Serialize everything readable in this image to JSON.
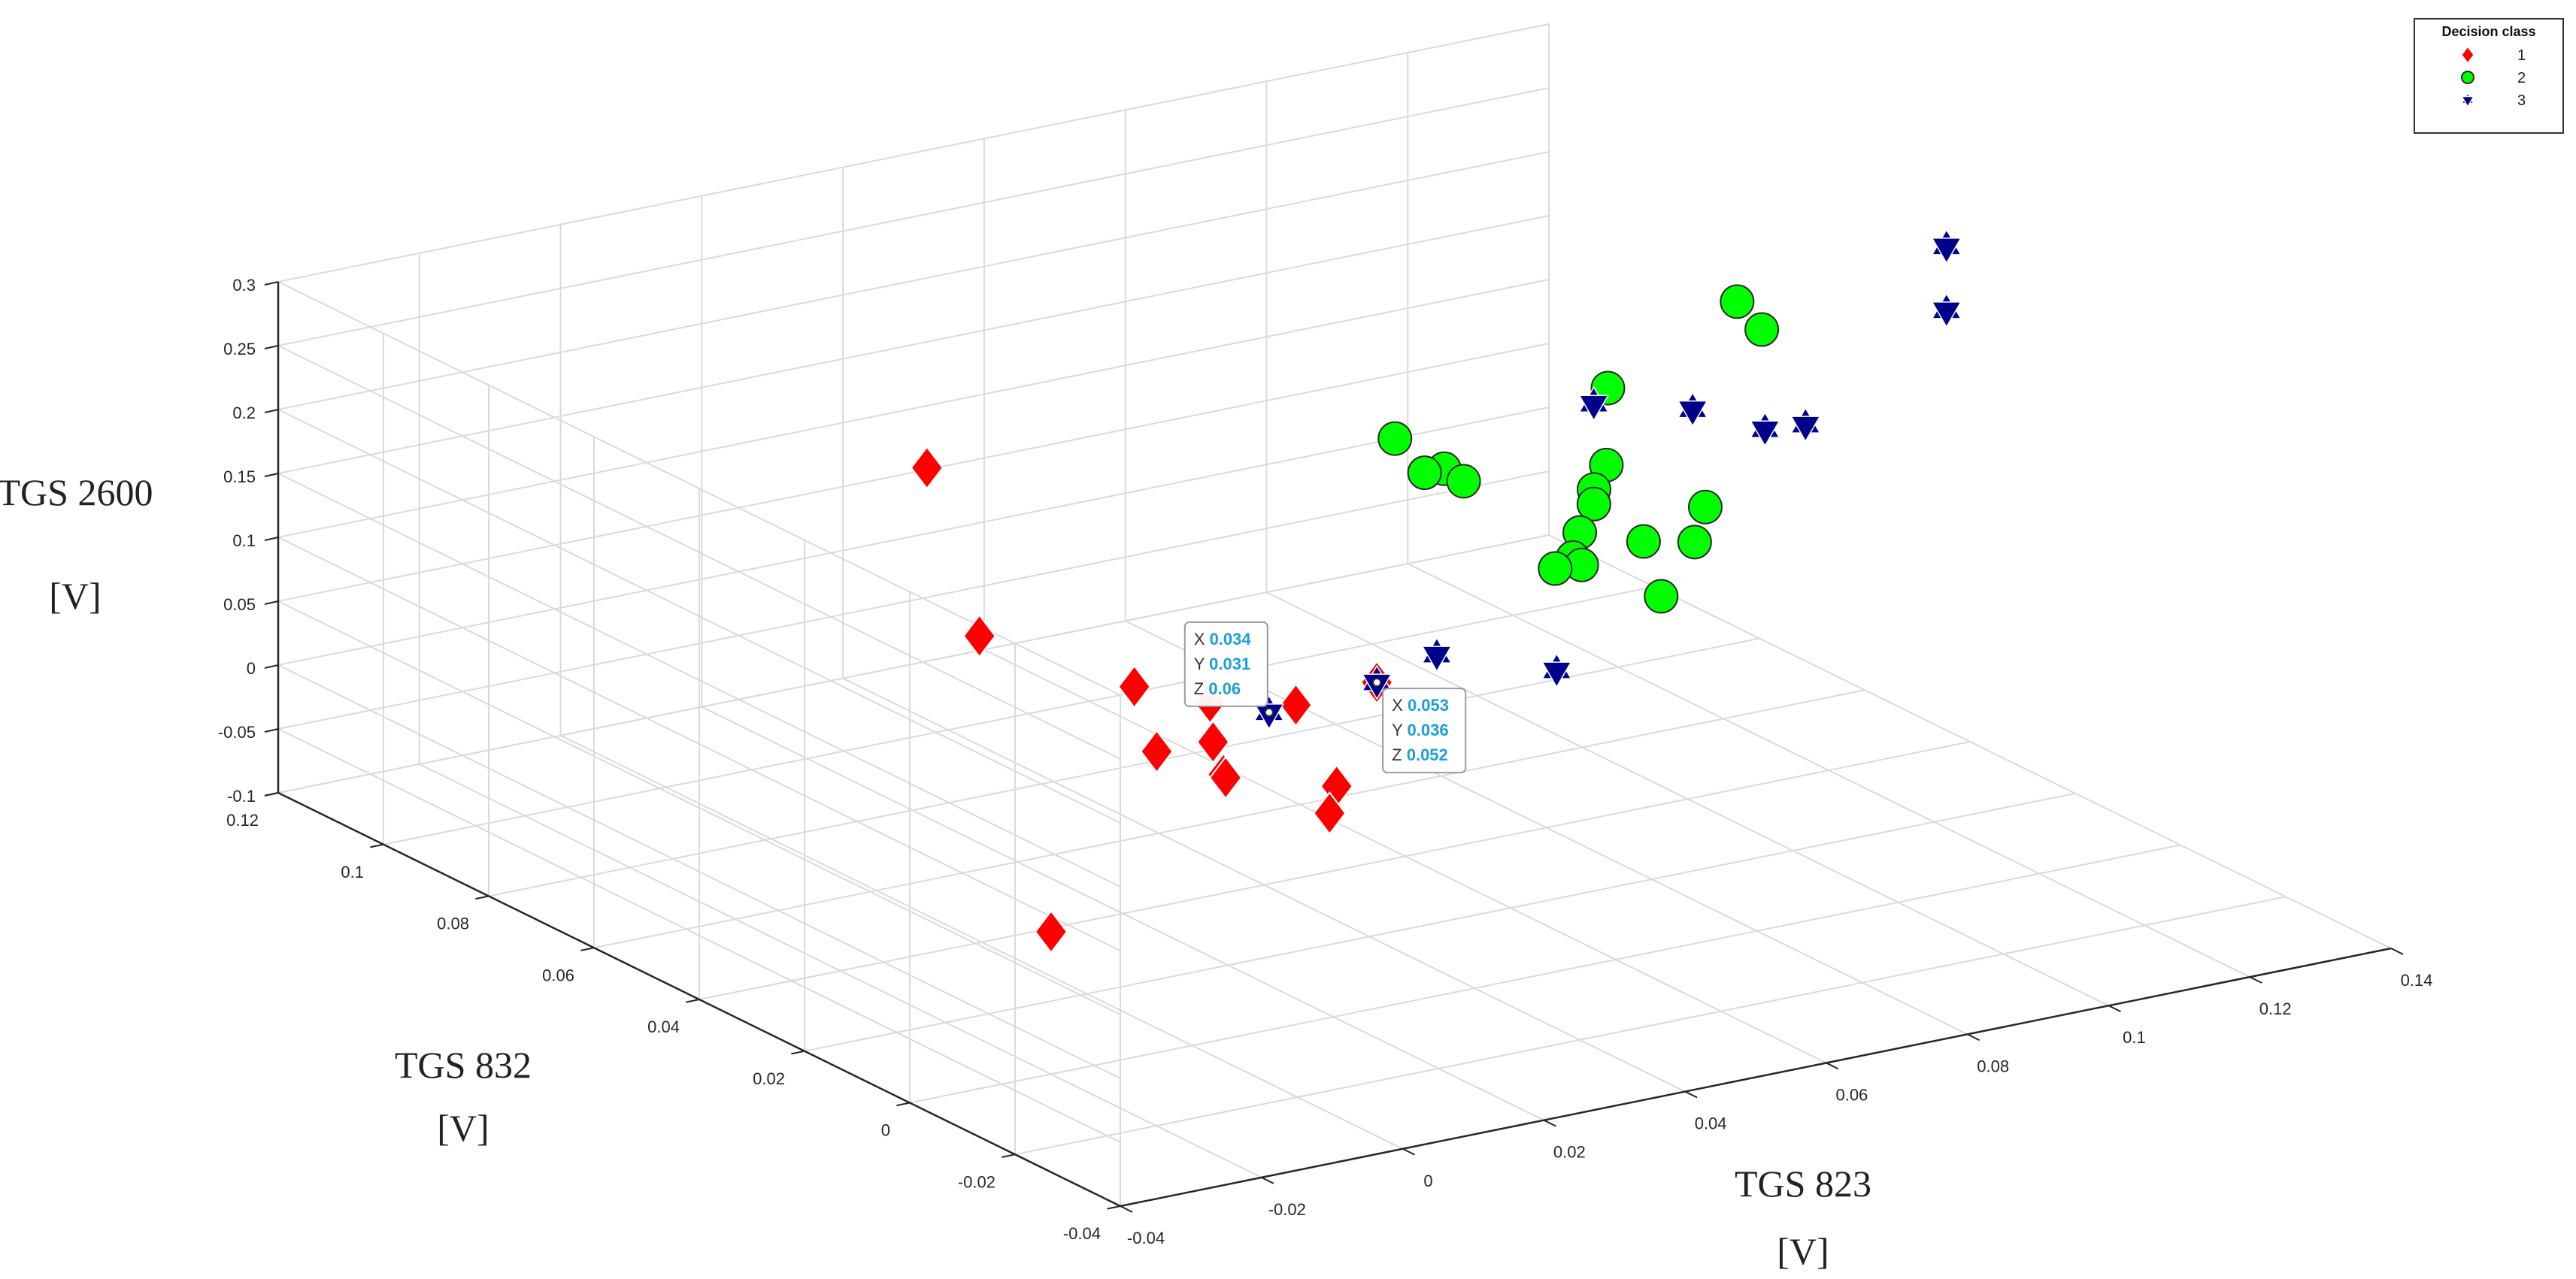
{
  "chart_data": {
    "type": "scatter3d",
    "axes": {
      "x": {
        "label": [
          "TGS 823",
          "[V]"
        ],
        "ticks": [
          "-0.04",
          "-0.02",
          "0",
          "0.02",
          "0.04",
          "0.06",
          "0.08",
          "0.1",
          "0.12",
          "0.14"
        ],
        "range": [
          -0.04,
          0.14
        ]
      },
      "y": {
        "label": [
          "TGS 832",
          "[V]"
        ],
        "ticks": [
          "-0.04",
          "-0.02",
          "0",
          "0.02",
          "0.04",
          "0.06",
          "0.08",
          "0.1",
          "0.12"
        ],
        "range": [
          -0.04,
          0.12
        ]
      },
      "z": {
        "label": [
          "TGS 2600",
          "[V]"
        ],
        "ticks": [
          "-0.1",
          "-0.05",
          "0",
          "0.05",
          "0.1",
          "0.15",
          "0.2",
          "0.25",
          "0.3"
        ],
        "range": [
          -0.1,
          0.3
        ]
      }
    },
    "grid": true,
    "legend": {
      "title": "Decision class",
      "placement": "top-right",
      "entries": [
        {
          "label": "1",
          "marker": "diamond",
          "color": "#ff0000"
        },
        {
          "label": "2",
          "marker": "circle",
          "color": "#00ff00"
        },
        {
          "label": "3",
          "marker": "hexagram",
          "color": "#00008b"
        }
      ]
    },
    "series": [
      {
        "name": "1",
        "points": [
          [
            0.034,
            0.096,
            0.12
          ],
          [
            0.031,
            0.082,
            0.02
          ],
          [
            0.044,
            0.07,
            -0.01
          ],
          [
            0.051,
            0.065,
            -0.02
          ],
          [
            0.057,
            0.049,
            -0.06
          ],
          [
            0.056,
            0.049,
            -0.08
          ],
          [
            0.053,
            0.036,
            0.052
          ],
          [
            0.046,
            0.042,
            0.03
          ],
          [
            0.045,
            0.054,
            -0.05
          ],
          [
            0.038,
            0.047,
            0.0
          ],
          [
            0.033,
            0.051,
            -0.01
          ],
          [
            0.035,
            0.041,
            -0.01
          ],
          [
            -0.017,
            0.004,
            0.0
          ]
        ]
      },
      {
        "name": "2",
        "points": [
          [
            0.066,
            0.05,
            0.2
          ],
          [
            0.062,
            0.039,
            0.2
          ],
          [
            0.07,
            0.046,
            0.18
          ],
          [
            0.072,
            0.045,
            0.17
          ],
          [
            0.087,
            0.038,
            0.18
          ],
          [
            0.086,
            0.039,
            0.16
          ],
          [
            0.082,
            0.031,
            0.26
          ],
          [
            0.083,
            0.035,
            0.16
          ],
          [
            0.081,
            0.035,
            0.14
          ],
          [
            0.079,
            0.037,
            0.11
          ],
          [
            0.083,
            0.039,
            0.11
          ],
          [
            0.085,
            0.04,
            0.1
          ],
          [
            0.11,
            0.044,
            0.27
          ],
          [
            0.112,
            0.042,
            0.25
          ],
          [
            0.104,
            0.042,
            0.12
          ],
          [
            0.101,
            0.04,
            0.1
          ],
          [
            0.096,
            0.043,
            0.1
          ],
          [
            0.097,
            0.041,
            0.06
          ]
        ]
      },
      {
        "name": "3",
        "points": [
          [
            0.034,
            0.031,
            0.06
          ],
          [
            0.053,
            0.036,
            0.052
          ],
          [
            0.06,
            0.034,
            0.07
          ],
          [
            0.074,
            0.03,
            0.05
          ],
          [
            0.08,
            0.031,
            0.25
          ],
          [
            0.094,
            0.031,
            0.23
          ],
          [
            0.105,
            0.032,
            0.2
          ],
          [
            0.11,
            0.031,
            0.2
          ],
          [
            0.124,
            0.023,
            0.34
          ],
          [
            0.124,
            0.023,
            0.29
          ]
        ]
      }
    ],
    "annotations": [
      {
        "target_series": "3",
        "lines": [
          {
            "k": "X",
            "v": "0.034"
          },
          {
            "k": "Y",
            "v": "0.031"
          },
          {
            "k": "Z",
            "v": "0.06"
          }
        ]
      },
      {
        "target_series": "1",
        "lines": [
          {
            "k": "X",
            "v": "0.053"
          },
          {
            "k": "Y",
            "v": "0.036"
          },
          {
            "k": "Z",
            "v": "0.052"
          }
        ]
      }
    ]
  },
  "colors": {
    "grid": "#dadada",
    "axis": "#262626",
    "tip_value": "#1aa0d8"
  }
}
